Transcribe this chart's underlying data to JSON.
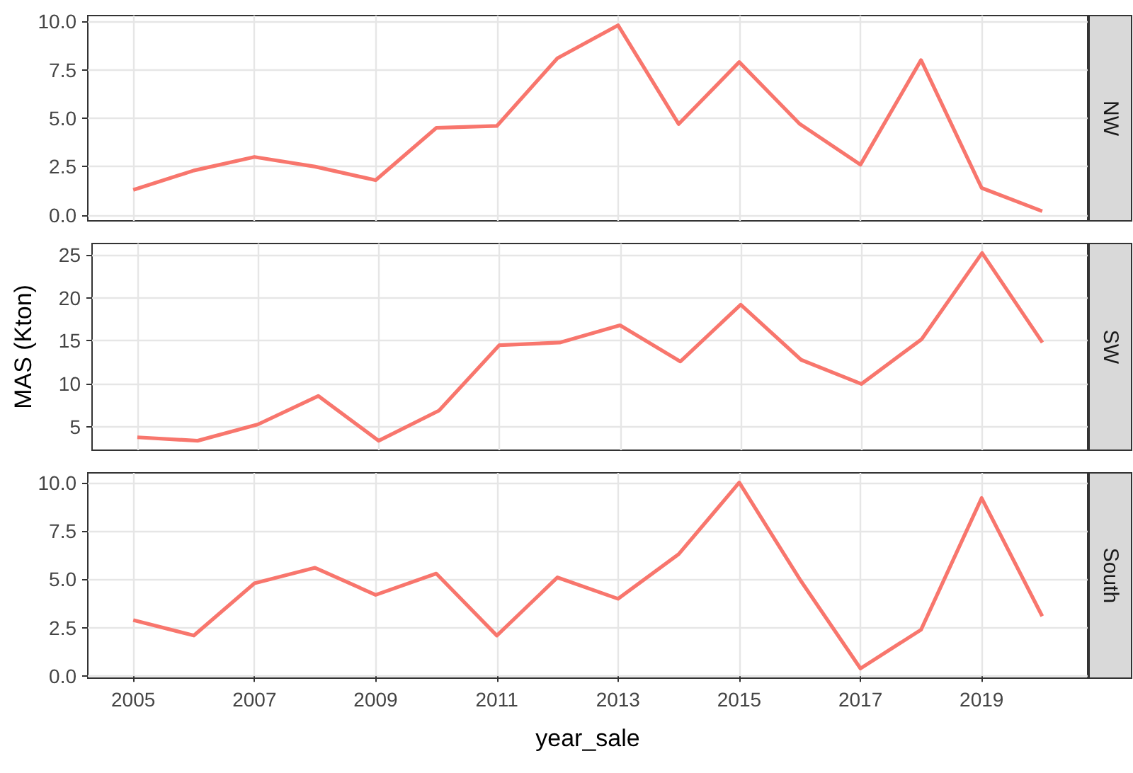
{
  "chart_data": [
    {
      "type": "line",
      "title": "NW",
      "x": [
        2005,
        2006,
        2007,
        2008,
        2009,
        2010,
        2011,
        2012,
        2013,
        2014,
        2015,
        2016,
        2017,
        2018,
        2019,
        2020
      ],
      "series": [
        {
          "color": "#f8766d",
          "values": [
            1.3,
            2.3,
            3.0,
            2.5,
            1.8,
            4.5,
            4.6,
            8.1,
            9.8,
            4.7,
            7.9,
            4.7,
            2.6,
            8.0,
            1.4,
            0.2
          ]
        }
      ],
      "xlim": [
        2004.25,
        2020.75
      ],
      "xticks": [
        2005,
        2007,
        2009,
        2011,
        2013,
        2015,
        2017,
        2019
      ],
      "ylim": [
        -0.3,
        10.3
      ],
      "yticks": [
        {
          "value": 0,
          "label": "0.0"
        },
        {
          "value": 2.5,
          "label": "2.5"
        },
        {
          "value": 5,
          "label": "5.0"
        },
        {
          "value": 7.5,
          "label": "7.5"
        },
        {
          "value": 10,
          "label": "10.0"
        }
      ],
      "grid": true,
      "tick_labels": "y"
    },
    {
      "type": "line",
      "title": "SW",
      "ylabel": "MAS (Kton)",
      "x": [
        2005,
        2006,
        2007,
        2008,
        2009,
        2010,
        2011,
        2012,
        2013,
        2014,
        2015,
        2016,
        2017,
        2018,
        2019,
        2020
      ],
      "series": [
        {
          "color": "#f8766d",
          "values": [
            3.8,
            3.4,
            5.3,
            8.6,
            3.4,
            6.9,
            14.5,
            14.8,
            16.8,
            12.6,
            19.2,
            12.8,
            10.0,
            15.2,
            25.2,
            14.8
          ]
        }
      ],
      "xlim": [
        2004.25,
        2020.75
      ],
      "xticks": [
        2005,
        2007,
        2009,
        2011,
        2013,
        2015,
        2017,
        2019
      ],
      "ylim": [
        2.3,
        26.3
      ],
      "yticks": [
        5,
        10,
        15,
        20,
        25
      ],
      "grid": true,
      "tick_labels": "y"
    },
    {
      "type": "line",
      "title": "South",
      "xlabel": "year_sale",
      "x": [
        2005,
        2006,
        2007,
        2008,
        2009,
        2010,
        2011,
        2012,
        2013,
        2014,
        2015,
        2016,
        2017,
        2018,
        2019,
        2020
      ],
      "series": [
        {
          "color": "#f8766d",
          "values": [
            2.9,
            2.1,
            4.8,
            5.6,
            4.2,
            5.3,
            2.1,
            5.1,
            4.0,
            6.3,
            10.0,
            5.0,
            0.4,
            2.4,
            9.2,
            3.1
          ]
        }
      ],
      "xlim": [
        2004.25,
        2020.75
      ],
      "xticks": [
        2005,
        2007,
        2009,
        2011,
        2013,
        2015,
        2017,
        2019
      ],
      "ylim": [
        -0.1,
        10.5
      ],
      "yticks": [
        {
          "value": 0,
          "label": "0.0"
        },
        {
          "value": 2.5,
          "label": "2.5"
        },
        {
          "value": 5,
          "label": "5.0"
        },
        {
          "value": 7.5,
          "label": "7.5"
        },
        {
          "value": 10,
          "label": "10.0"
        }
      ],
      "grid": true
    }
  ]
}
